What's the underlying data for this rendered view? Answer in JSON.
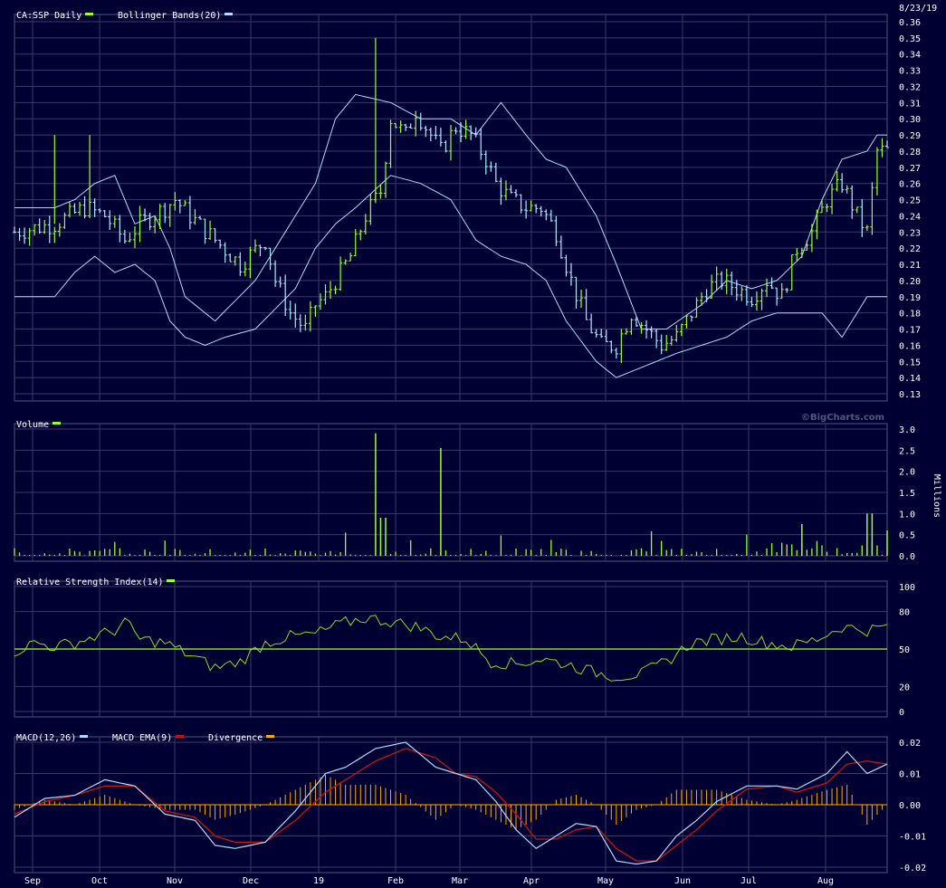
{
  "date_label": "8/23/19",
  "watermark": "©BigCharts.com",
  "months": [
    "Sep",
    "Oct",
    "Nov",
    "Dec",
    "19",
    "Feb",
    "Mar",
    "Apr",
    "May",
    "Jun",
    "Jul",
    "Aug"
  ],
  "colors": {
    "background": "#000033",
    "grid": "#3a3a6a",
    "up": "#99ff33",
    "down": "#aaeeff",
    "band": "#aaddff",
    "rsi": "#88dd22",
    "macd": "#aaddff",
    "signal": "#cc1111",
    "divergence": "#ffaa00"
  },
  "chart_data": [
    {
      "type": "ohlc",
      "legend": [
        {
          "label": "CA:SSP Daily",
          "color": "#99ff33"
        },
        {
          "label": "Bollinger Bands(20)",
          "color": "#aaddff"
        }
      ],
      "ylim": [
        0.13,
        0.36
      ],
      "ticks": [
        "0.36",
        "0.35",
        "0.34",
        "0.33",
        "0.32",
        "0.31",
        "0.30",
        "0.29",
        "0.28",
        "0.27",
        "0.26",
        "0.25",
        "0.24",
        "0.23",
        "0.22",
        "0.21",
        "0.20",
        "0.19",
        "0.18",
        "0.17",
        "0.16",
        "0.15",
        "0.14",
        "0.13"
      ],
      "close_path": [
        [
          0,
          0.23
        ],
        [
          8,
          0.235
        ],
        [
          14,
          0.245
        ],
        [
          18,
          0.24
        ],
        [
          22,
          0.225
        ],
        [
          25,
          0.235
        ],
        [
          30,
          0.245
        ],
        [
          32,
          0.25
        ],
        [
          35,
          0.24
        ],
        [
          40,
          0.225
        ],
        [
          45,
          0.21
        ],
        [
          50,
          0.225
        ],
        [
          52,
          0.2
        ],
        [
          55,
          0.18
        ],
        [
          58,
          0.17
        ],
        [
          60,
          0.185
        ],
        [
          62,
          0.19
        ],
        [
          64,
          0.2
        ],
        [
          67,
          0.215
        ],
        [
          70,
          0.24
        ],
        [
          73,
          0.255
        ],
        [
          75,
          0.3
        ],
        [
          78,
          0.29
        ],
        [
          80,
          0.305
        ],
        [
          83,
          0.29
        ],
        [
          85,
          0.28
        ],
        [
          88,
          0.295
        ],
        [
          91,
          0.29
        ],
        [
          94,
          0.275
        ],
        [
          96,
          0.26
        ],
        [
          99,
          0.25
        ],
        [
          102,
          0.245
        ],
        [
          105,
          0.245
        ],
        [
          108,
          0.23
        ],
        [
          111,
          0.2
        ],
        [
          114,
          0.175
        ],
        [
          117,
          0.16
        ],
        [
          120,
          0.16
        ],
        [
          123,
          0.18
        ],
        [
          126,
          0.17
        ],
        [
          129,
          0.16
        ],
        [
          132,
          0.165
        ],
        [
          135,
          0.18
        ],
        [
          138,
          0.195
        ],
        [
          141,
          0.2
        ],
        [
          144,
          0.195
        ],
        [
          147,
          0.19
        ],
        [
          150,
          0.2
        ],
        [
          153,
          0.19
        ],
        [
          156,
          0.22
        ],
        [
          159,
          0.23
        ],
        [
          162,
          0.25
        ],
        [
          165,
          0.26
        ],
        [
          168,
          0.24
        ],
        [
          170,
          0.23
        ],
        [
          172,
          0.28
        ]
      ],
      "spikes": [
        [
          72,
          0.35
        ],
        [
          8,
          0.29
        ],
        [
          15,
          0.29
        ]
      ],
      "upper_band_path": [
        [
          0,
          0.245
        ],
        [
          8,
          0.245
        ],
        [
          12,
          0.25
        ],
        [
          16,
          0.26
        ],
        [
          20,
          0.265
        ],
        [
          24,
          0.235
        ],
        [
          28,
          0.24
        ],
        [
          31,
          0.22
        ],
        [
          34,
          0.19
        ],
        [
          40,
          0.175
        ],
        [
          48,
          0.2
        ],
        [
          52,
          0.22
        ],
        [
          56,
          0.24
        ],
        [
          60,
          0.26
        ],
        [
          64,
          0.3
        ],
        [
          68,
          0.315
        ],
        [
          75,
          0.31
        ],
        [
          81,
          0.3
        ],
        [
          87,
          0.3
        ],
        [
          92,
          0.29
        ],
        [
          97,
          0.31
        ],
        [
          102,
          0.29
        ],
        [
          106,
          0.275
        ],
        [
          110,
          0.27
        ],
        [
          116,
          0.24
        ],
        [
          120,
          0.21
        ],
        [
          125,
          0.17
        ],
        [
          130,
          0.17
        ],
        [
          137,
          0.185
        ],
        [
          142,
          0.2
        ],
        [
          147,
          0.195
        ],
        [
          152,
          0.2
        ],
        [
          157,
          0.215
        ],
        [
          161,
          0.25
        ],
        [
          165,
          0.275
        ],
        [
          170,
          0.28
        ],
        [
          172,
          0.29
        ]
      ],
      "lower_band_path": [
        [
          0,
          0.19
        ],
        [
          8,
          0.19
        ],
        [
          12,
          0.205
        ],
        [
          16,
          0.215
        ],
        [
          20,
          0.205
        ],
        [
          24,
          0.21
        ],
        [
          28,
          0.2
        ],
        [
          31,
          0.175
        ],
        [
          34,
          0.165
        ],
        [
          38,
          0.16
        ],
        [
          42,
          0.165
        ],
        [
          48,
          0.17
        ],
        [
          56,
          0.195
        ],
        [
          60,
          0.22
        ],
        [
          64,
          0.235
        ],
        [
          68,
          0.245
        ],
        [
          75,
          0.265
        ],
        [
          81,
          0.26
        ],
        [
          87,
          0.25
        ],
        [
          92,
          0.225
        ],
        [
          97,
          0.215
        ],
        [
          102,
          0.21
        ],
        [
          106,
          0.2
        ],
        [
          110,
          0.175
        ],
        [
          116,
          0.15
        ],
        [
          120,
          0.14
        ],
        [
          124,
          0.145
        ],
        [
          128,
          0.15
        ],
        [
          132,
          0.155
        ],
        [
          137,
          0.16
        ],
        [
          142,
          0.165
        ],
        [
          147,
          0.175
        ],
        [
          152,
          0.18
        ],
        [
          157,
          0.18
        ],
        [
          161,
          0.18
        ],
        [
          165,
          0.165
        ],
        [
          170,
          0.19
        ],
        [
          172,
          0.19
        ]
      ]
    },
    {
      "type": "bar",
      "legend": [
        {
          "label": "Volume",
          "color": "#99ff33"
        }
      ],
      "ylabel": "Millions",
      "ylim": [
        0,
        3.0
      ],
      "ticks": [
        "3.0",
        "2.5",
        "2.0",
        "1.5",
        "1.0",
        "0.5",
        "0.0"
      ],
      "spikes": [
        [
          72,
          2.9
        ],
        [
          73,
          0.9
        ],
        [
          74,
          0.9
        ],
        [
          85,
          2.55
        ],
        [
          157,
          0.75
        ],
        [
          170,
          1.0
        ],
        [
          171,
          1.0
        ],
        [
          174,
          0.6
        ]
      ]
    },
    {
      "type": "line",
      "legend": [
        {
          "label": "Relative Strength Index(14)",
          "color": "#99ff33"
        }
      ],
      "ylim": [
        0,
        100
      ],
      "ticks": [
        "100",
        "80",
        "50",
        "20",
        "0"
      ],
      "reference_level": 50,
      "rsi_path": [
        [
          0,
          48
        ],
        [
          4,
          55
        ],
        [
          8,
          52
        ],
        [
          12,
          55
        ],
        [
          16,
          60
        ],
        [
          20,
          65
        ],
        [
          22,
          72
        ],
        [
          25,
          58
        ],
        [
          30,
          55
        ],
        [
          35,
          45
        ],
        [
          40,
          35
        ],
        [
          45,
          40
        ],
        [
          50,
          55
        ],
        [
          55,
          60
        ],
        [
          60,
          62
        ],
        [
          65,
          70
        ],
        [
          70,
          75
        ],
        [
          75,
          72
        ],
        [
          80,
          68
        ],
        [
          85,
          60
        ],
        [
          90,
          58
        ],
        [
          95,
          40
        ],
        [
          100,
          38
        ],
        [
          105,
          42
        ],
        [
          110,
          38
        ],
        [
          115,
          32
        ],
        [
          120,
          28
        ],
        [
          125,
          30
        ],
        [
          130,
          40
        ],
        [
          135,
          55
        ],
        [
          140,
          58
        ],
        [
          145,
          60
        ],
        [
          150,
          55
        ],
        [
          155,
          52
        ],
        [
          160,
          58
        ],
        [
          165,
          68
        ],
        [
          170,
          65
        ],
        [
          174,
          68
        ]
      ]
    },
    {
      "type": "line",
      "legend": [
        {
          "label": "MACD(12,26)",
          "color": "#aaddff"
        },
        {
          "label": "MACD EMA(9)",
          "color": "#cc1111"
        },
        {
          "label": "Divergence",
          "color": "#ffaa00"
        }
      ],
      "ylim": [
        -0.02,
        0.02
      ],
      "ticks": [
        "0.02",
        "0.01",
        "0.00",
        "-0.01",
        "-0.02"
      ],
      "macd_path": [
        [
          0,
          -0.004
        ],
        [
          6,
          0.002
        ],
        [
          12,
          0.003
        ],
        [
          18,
          0.008
        ],
        [
          24,
          0.006
        ],
        [
          30,
          -0.003
        ],
        [
          36,
          -0.005
        ],
        [
          40,
          -0.013
        ],
        [
          44,
          -0.014
        ],
        [
          50,
          -0.012
        ],
        [
          56,
          -0.002
        ],
        [
          62,
          0.01
        ],
        [
          66,
          0.012
        ],
        [
          72,
          0.018
        ],
        [
          78,
          0.02
        ],
        [
          84,
          0.012
        ],
        [
          88,
          0.01
        ],
        [
          92,
          0.008
        ],
        [
          96,
          0.001
        ],
        [
          100,
          -0.008
        ],
        [
          104,
          -0.014
        ],
        [
          108,
          -0.01
        ],
        [
          112,
          -0.006
        ],
        [
          116,
          -0.007
        ],
        [
          120,
          -0.018
        ],
        [
          124,
          -0.019
        ],
        [
          128,
          -0.018
        ],
        [
          132,
          -0.01
        ],
        [
          136,
          -0.005
        ],
        [
          140,
          0.001
        ],
        [
          146,
          0.006
        ],
        [
          152,
          0.006
        ],
        [
          156,
          0.005
        ],
        [
          162,
          0.01
        ],
        [
          166,
          0.017
        ],
        [
          170,
          0.01
        ],
        [
          174,
          0.013
        ]
      ],
      "signal_path": [
        [
          0,
          -0.003
        ],
        [
          6,
          0.001
        ],
        [
          12,
          0.003
        ],
        [
          18,
          0.006
        ],
        [
          24,
          0.006
        ],
        [
          30,
          -0.002
        ],
        [
          36,
          -0.004
        ],
        [
          40,
          -0.01
        ],
        [
          44,
          -0.012
        ],
        [
          50,
          -0.012
        ],
        [
          56,
          -0.005
        ],
        [
          62,
          0.004
        ],
        [
          66,
          0.008
        ],
        [
          72,
          0.014
        ],
        [
          78,
          0.018
        ],
        [
          84,
          0.015
        ],
        [
          88,
          0.01
        ],
        [
          92,
          0.009
        ],
        [
          96,
          0.004
        ],
        [
          100,
          -0.003
        ],
        [
          104,
          -0.011
        ],
        [
          108,
          -0.011
        ],
        [
          112,
          -0.008
        ],
        [
          116,
          -0.007
        ],
        [
          120,
          -0.014
        ],
        [
          124,
          -0.018
        ],
        [
          128,
          -0.018
        ],
        [
          132,
          -0.013
        ],
        [
          136,
          -0.008
        ],
        [
          140,
          -0.002
        ],
        [
          146,
          0.005
        ],
        [
          152,
          0.006
        ],
        [
          156,
          0.004
        ],
        [
          162,
          0.007
        ],
        [
          166,
          0.013
        ],
        [
          170,
          0.014
        ],
        [
          174,
          0.013
        ]
      ]
    }
  ]
}
